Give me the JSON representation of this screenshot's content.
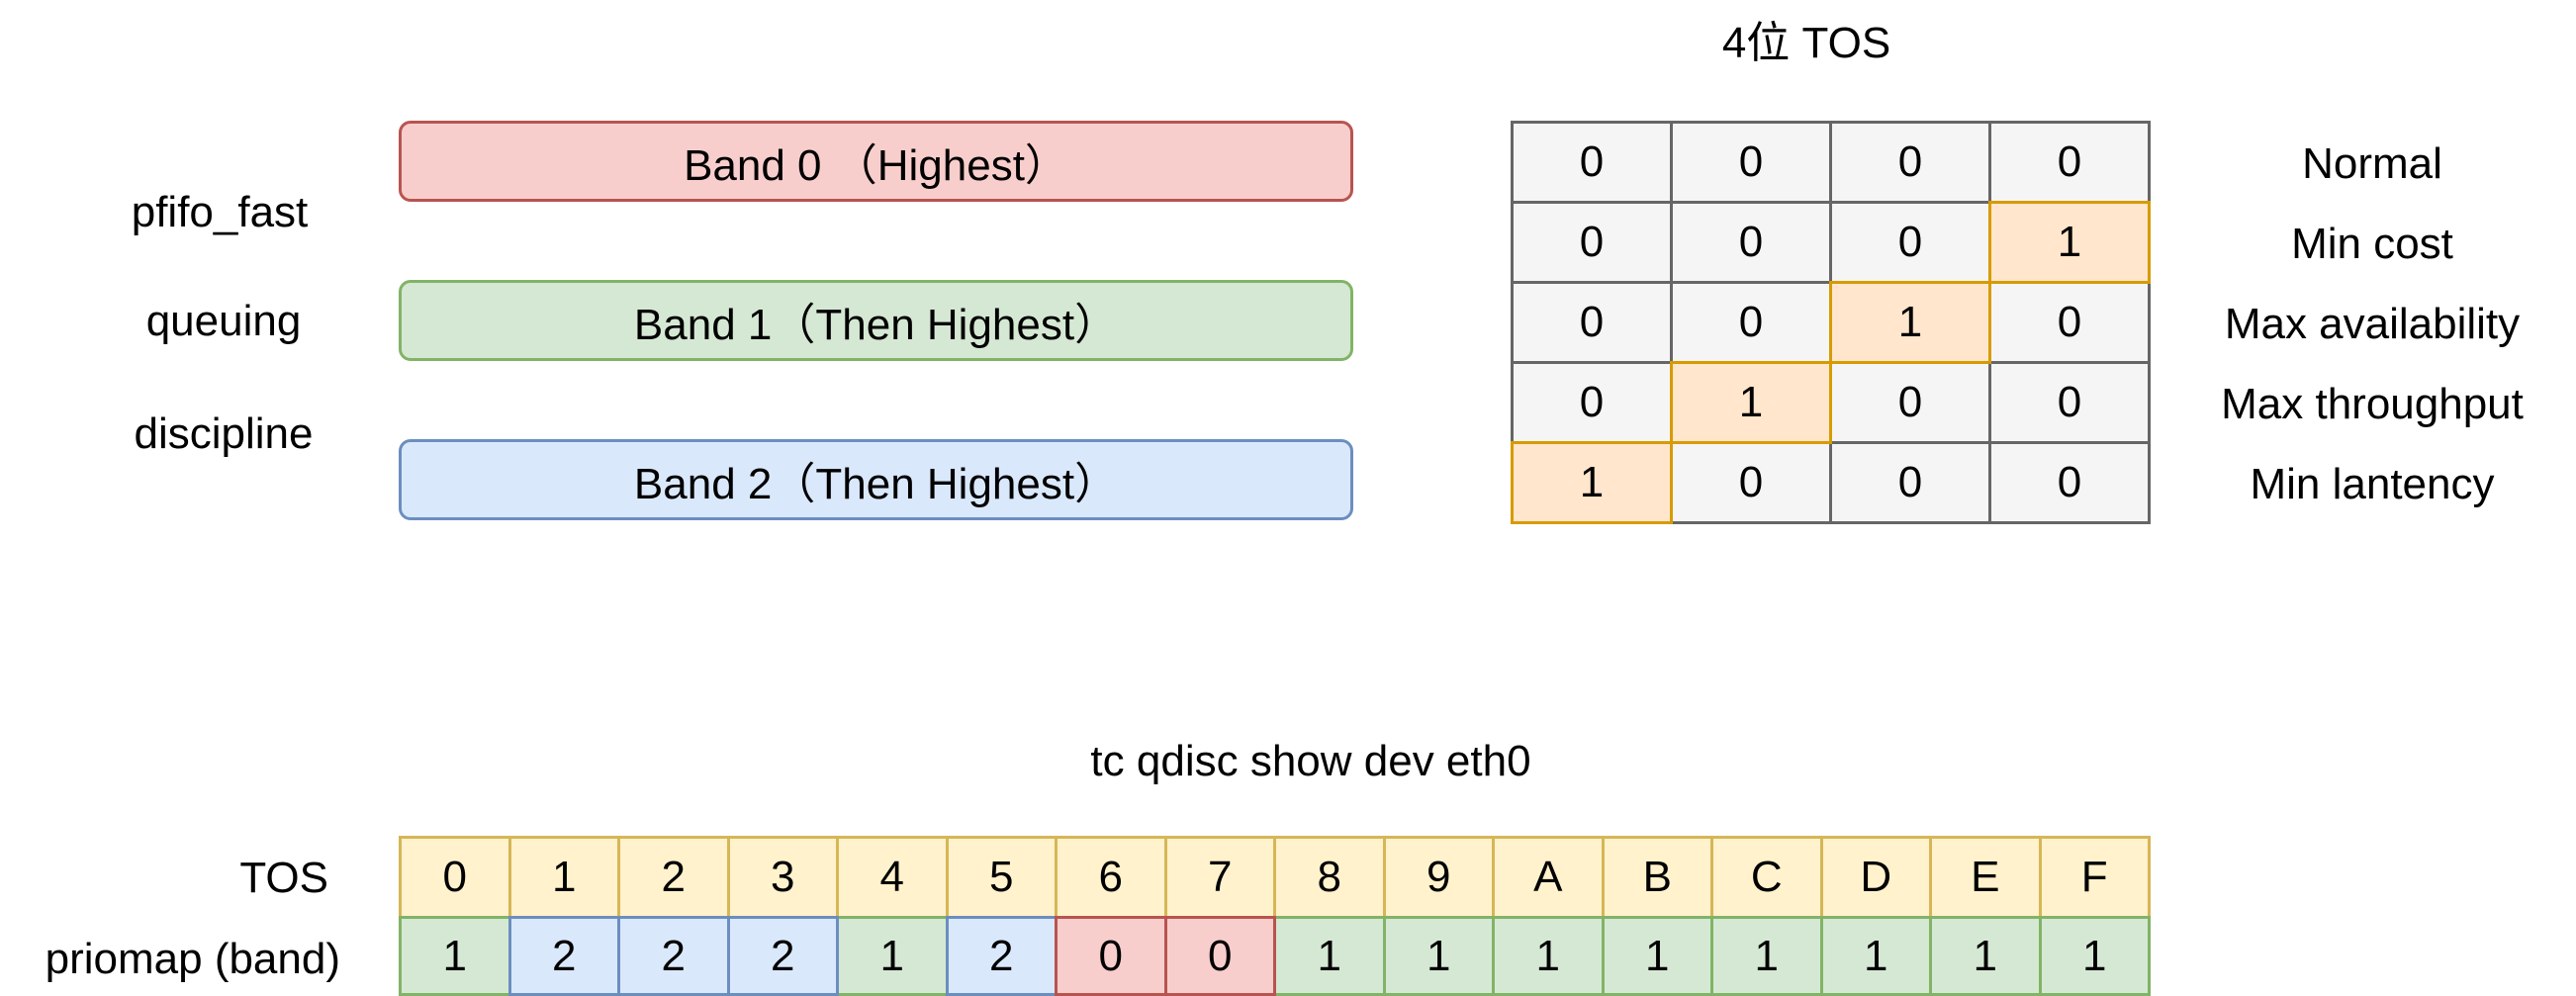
{
  "colors": {
    "band_red_fill": "#f8cecc",
    "band_red_stroke": "#b85450",
    "band_green_fill": "#d5e8d4",
    "band_green_stroke": "#82b366",
    "band_blue_fill": "#dae8fc",
    "band_blue_stroke": "#6c8ebf",
    "tos_fill": "#fff2cc",
    "tos_stroke": "#d6b656",
    "grid_fill": "#f5f5f5",
    "grid_stroke": "#666666",
    "highlight_fill": "#ffe6cc",
    "highlight_stroke": "#d79b00"
  },
  "qdisc_label": {
    "line1": "pfifo_fast",
    "line2": "queuing",
    "line3": "discipline"
  },
  "bands": [
    {
      "label": "Band 0 （Highest）",
      "color": "red"
    },
    {
      "label": "Band 1（Then Highest）",
      "color": "green"
    },
    {
      "label": "Band 2（Then Highest）",
      "color": "blue"
    }
  ],
  "tos_table": {
    "title": "4位 TOS",
    "rows": [
      {
        "bits": [
          "0",
          "0",
          "0",
          "0"
        ],
        "label": "Normal",
        "highlight": -1
      },
      {
        "bits": [
          "0",
          "0",
          "0",
          "1"
        ],
        "label": "Min cost",
        "highlight": 3
      },
      {
        "bits": [
          "0",
          "0",
          "1",
          "0"
        ],
        "label": "Max availability",
        "highlight": 2
      },
      {
        "bits": [
          "0",
          "1",
          "0",
          "0"
        ],
        "label": "Max throughput",
        "highlight": 1
      },
      {
        "bits": [
          "1",
          "0",
          "0",
          "0"
        ],
        "label": "Min lantency",
        "highlight": 0
      }
    ]
  },
  "priomap": {
    "title": "tc qdisc show dev eth0",
    "tos_label": "TOS",
    "band_label": "priomap (band)",
    "tos_values": [
      "0",
      "1",
      "2",
      "3",
      "4",
      "5",
      "6",
      "7",
      "8",
      "9",
      "A",
      "B",
      "C",
      "D",
      "E",
      "F"
    ],
    "band_values": [
      "1",
      "2",
      "2",
      "2",
      "1",
      "2",
      "0",
      "0",
      "1",
      "1",
      "1",
      "1",
      "1",
      "1",
      "1",
      "1"
    ]
  }
}
